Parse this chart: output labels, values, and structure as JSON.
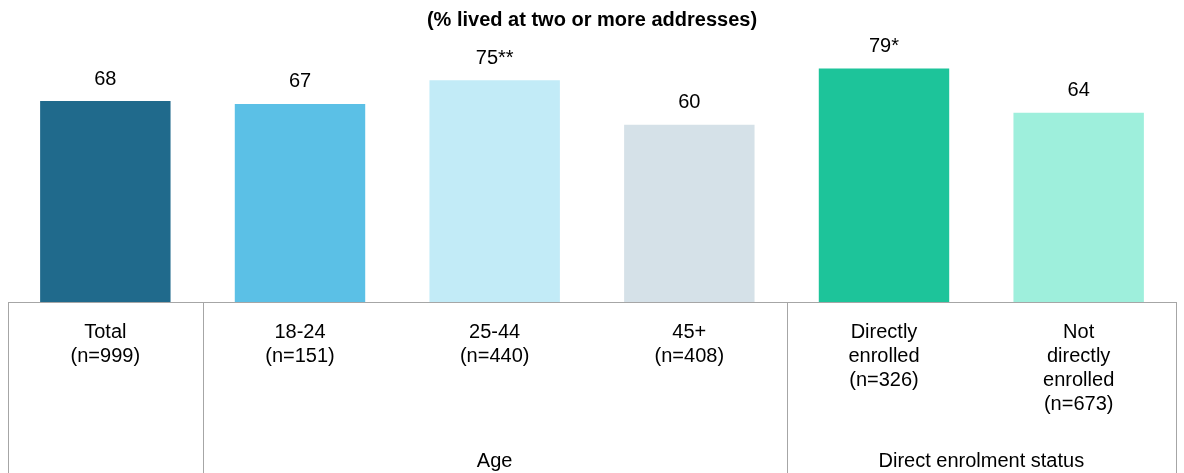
{
  "chart_data": {
    "type": "bar",
    "title": "(% lived at two or more addresses)",
    "categories": [
      "Total\n(n=999)",
      "18-24\n(n=151)",
      "25-44\n(n=440)",
      "45+\n(n=408)",
      "Directly\nenrolled\n(n=326)",
      "Not\ndirectly\nenrolled\n(n=673)"
    ],
    "values": [
      68,
      67,
      75,
      60,
      79,
      64
    ],
    "colors": [
      "#206a8c",
      "#5bc0e6",
      "#c2ebf7",
      "#d5e1e8",
      "#1dc49a",
      "#9eefdc"
    ],
    "value_labels": [
      "68",
      "67",
      "75**",
      "60",
      "79*",
      "64"
    ],
    "tick_labels": "x",
    "grid": false,
    "legend": false,
    "annotations": [
      "Age",
      "Direct enrolment status"
    ]
  }
}
